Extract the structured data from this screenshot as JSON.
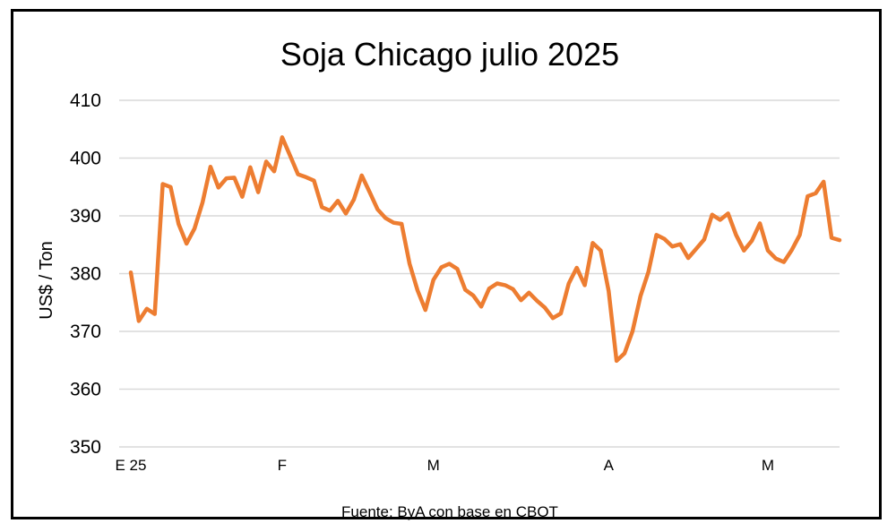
{
  "chart_data": {
    "type": "line",
    "title": "Soja Chicago julio 2025",
    "ylabel": "US$ / Ton",
    "xlabel": "",
    "source": "Fuente: ByA con base en CBOT",
    "ylim": [
      350,
      410
    ],
    "yticks": [
      350,
      360,
      370,
      380,
      390,
      400,
      410
    ],
    "xticks": [
      {
        "label": "E 25",
        "index": 0
      },
      {
        "label": "F",
        "index": 19
      },
      {
        "label": "M",
        "index": 38
      },
      {
        "label": "A",
        "index": 60
      },
      {
        "label": "M",
        "index": 80
      }
    ],
    "grid": true,
    "line_color": "#ED7D31",
    "series": [
      {
        "values": [
          380.2,
          371.8,
          373.9,
          373.0,
          395.5,
          395.0,
          388.6,
          385.2,
          387.8,
          392.3,
          398.5,
          394.9,
          396.5,
          396.6,
          393.3,
          398.4,
          394.1,
          399.4,
          397.7,
          403.6,
          400.4,
          397.2,
          396.7,
          396.1,
          391.5,
          390.9,
          392.6,
          390.4,
          392.8,
          397.0,
          394.1,
          391.1,
          389.6,
          388.8,
          388.6,
          381.7,
          377.1,
          373.7,
          378.9,
          381.1,
          381.7,
          380.8,
          377.2,
          376.2,
          374.3,
          377.4,
          378.3,
          378.0,
          377.3,
          375.4,
          376.7,
          375.3,
          374.1,
          372.3,
          373.1,
          378.3,
          381.0,
          378.0,
          385.3,
          384.0,
          377.0,
          364.9,
          366.2,
          370.0,
          376.1,
          380.3,
          386.7,
          386.0,
          384.7,
          385.1,
          382.7,
          384.3,
          385.9,
          390.2,
          389.3,
          390.4,
          386.7,
          384.0,
          385.7,
          388.7,
          384.0,
          382.6,
          382.0,
          384.1,
          386.7,
          393.4,
          393.9,
          395.9,
          386.2,
          385.8
        ]
      }
    ]
  }
}
